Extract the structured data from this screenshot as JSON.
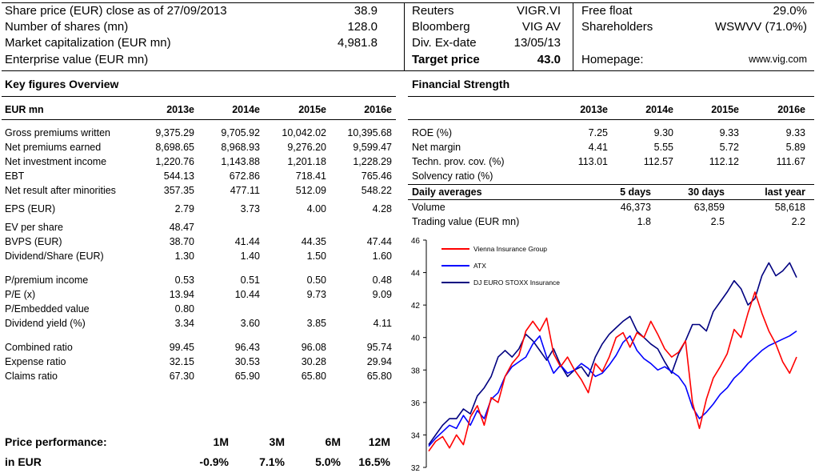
{
  "header": {
    "left": [
      {
        "label": "Share price (EUR) close as of 27/09/2013",
        "value": "38.9"
      },
      {
        "label": "Number of shares (mn)",
        "value": "128.0"
      },
      {
        "label": "Market capitalization (EUR mn)",
        "value": "4,981.8"
      },
      {
        "label": "Enterprise value (EUR mn)",
        "value": ""
      }
    ],
    "mid": [
      {
        "label": "Reuters",
        "value": "VIGR.VI"
      },
      {
        "label": "Bloomberg",
        "value": "VIG AV"
      },
      {
        "label": "Div. Ex-date",
        "value": "13/05/13"
      },
      {
        "label": "Target price",
        "value": "43.0"
      }
    ],
    "right": [
      {
        "label": "Free float",
        "value": "29.0%"
      },
      {
        "label": "Shareholders",
        "value": "WSWVV (71.0%)"
      },
      {
        "label": "",
        "value": ""
      },
      {
        "label": "Homepage:",
        "value": "www.vig.com"
      }
    ]
  },
  "key_figures": {
    "title": "Key figures Overview",
    "unit": "EUR mn",
    "years": [
      "2013e",
      "2014e",
      "2015e",
      "2016e"
    ],
    "rows": [
      {
        "label": "Gross premiums written",
        "values": [
          "9,375.29",
          "9,705.92",
          "10,042.02",
          "10,395.68"
        ]
      },
      {
        "label": "Net premiums earned",
        "values": [
          "8,698.65",
          "8,968.93",
          "9,276.20",
          "9,599.47"
        ]
      },
      {
        "label": "Net investment income",
        "values": [
          "1,220.76",
          "1,143.88",
          "1,201.18",
          "1,228.29"
        ]
      },
      {
        "label": "EBT",
        "values": [
          "544.13",
          "672.86",
          "718.41",
          "765.46"
        ]
      },
      {
        "label": "Net result after minorities",
        "values": [
          "357.35",
          "477.11",
          "512.09",
          "548.22"
        ]
      },
      {
        "label": "EPS (EUR)",
        "values": [
          "2.79",
          "3.73",
          "4.00",
          "4.28"
        ]
      },
      {
        "label": "EV per share",
        "values": [
          "48.47",
          "",
          "",
          ""
        ]
      },
      {
        "label": "BVPS (EUR)",
        "values": [
          "38.70",
          "41.44",
          "44.35",
          "47.44"
        ]
      },
      {
        "label": "Dividend/Share (EUR)",
        "values": [
          "1.30",
          "1.40",
          "1.50",
          "1.60"
        ]
      },
      {
        "label": "P/premium income",
        "values": [
          "0.53",
          "0.51",
          "0.50",
          "0.48"
        ]
      },
      {
        "label": "P/E (x)",
        "values": [
          "13.94",
          "10.44",
          "9.73",
          "9.09"
        ]
      },
      {
        "label": "P/Embedded value",
        "values": [
          "0.80",
          "",
          "",
          ""
        ]
      },
      {
        "label": "Dividend yield (%)",
        "values": [
          "3.34",
          "3.60",
          "3.85",
          "4.11"
        ]
      },
      {
        "label": "Combined ratio",
        "values": [
          "99.45",
          "96.43",
          "96.08",
          "95.74"
        ]
      },
      {
        "label": "Expense ratio",
        "values": [
          "32.15",
          "30.53",
          "30.28",
          "29.94"
        ]
      },
      {
        "label": "Claims ratio",
        "values": [
          "67.30",
          "65.90",
          "65.80",
          "65.80"
        ]
      }
    ]
  },
  "financial_strength": {
    "title": "Financial Strength",
    "years": [
      "2013e",
      "2014e",
      "2015e",
      "2016e"
    ],
    "rows": [
      {
        "label": "ROE (%)",
        "values": [
          "7.25",
          "9.30",
          "9.33",
          "9.33"
        ]
      },
      {
        "label": "Net margin",
        "values": [
          "4.41",
          "5.55",
          "5.72",
          "5.89"
        ]
      },
      {
        "label": "Techn. prov. cov. (%)",
        "values": [
          "113.01",
          "112.57",
          "112.12",
          "111.67"
        ]
      },
      {
        "label": "Solvency ratio (%)",
        "values": [
          "",
          "",
          "",
          ""
        ]
      }
    ]
  },
  "daily_averages": {
    "title": "Daily averages",
    "cols": [
      "5 days",
      "30 days",
      "last year"
    ],
    "rows": [
      {
        "label": "Volume",
        "values": [
          "46,373",
          "63,859",
          "58,618"
        ]
      },
      {
        "label": "Trading value (EUR mn)",
        "values": [
          "1.8",
          "2.5",
          "2.2"
        ]
      }
    ]
  },
  "price_performance": {
    "title": "Price performance:",
    "currency_label": "in EUR",
    "periods": [
      "1M",
      "3M",
      "6M",
      "12M"
    ],
    "values": [
      "-0.9%",
      "7.1%",
      "5.0%",
      "16.5%"
    ]
  },
  "chart_data": {
    "type": "line",
    "ylim": [
      32,
      46
    ],
    "yticks": [
      "32",
      "34",
      "36",
      "38",
      "40",
      "42",
      "44",
      "46"
    ],
    "legend_position": "top-left",
    "colors": {
      "vig": "#ff0000",
      "atx": "#0000ff",
      "stoxx": "#000080"
    },
    "series": [
      {
        "name": "Vienna Insurance Group",
        "values": [
          33.0,
          33.6,
          33.9,
          33.2,
          34.0,
          33.4,
          35.1,
          35.8,
          34.6,
          36.3,
          36.0,
          37.6,
          38.4,
          38.9,
          40.4,
          41.0,
          40.4,
          41.2,
          39.0,
          38.2,
          38.8,
          38.0,
          37.4,
          36.6,
          38.4,
          37.9,
          38.8,
          40.0,
          40.3,
          39.4,
          40.3,
          40.0,
          41.0,
          40.2,
          39.3,
          38.8,
          39.1,
          39.8,
          36.0,
          34.4,
          36.2,
          37.5,
          38.2,
          39.0,
          40.5,
          40.0,
          41.5,
          42.8,
          41.5,
          40.4,
          39.6,
          38.5,
          37.8,
          38.8
        ]
      },
      {
        "name": "ATX",
        "values": [
          33.3,
          33.8,
          34.2,
          34.6,
          34.4,
          35.2,
          34.6,
          35.5,
          35.0,
          36.2,
          36.6,
          37.6,
          38.2,
          38.5,
          38.8,
          39.6,
          40.1,
          38.8,
          37.8,
          38.3,
          37.8,
          38.0,
          38.4,
          38.1,
          37.6,
          37.8,
          38.3,
          38.9,
          39.7,
          40.1,
          39.2,
          38.7,
          38.4,
          38.0,
          38.2,
          37.9,
          37.6,
          37.0,
          35.7,
          35.0,
          35.4,
          35.9,
          36.5,
          36.9,
          37.5,
          37.9,
          38.4,
          38.8,
          39.2,
          39.5,
          39.7,
          39.9,
          40.1,
          40.4
        ]
      },
      {
        "name": "DJ EURO STOXX Insurance",
        "values": [
          33.4,
          34.0,
          34.6,
          35.0,
          35.0,
          35.6,
          35.3,
          36.4,
          36.9,
          37.6,
          38.8,
          39.2,
          38.8,
          39.3,
          40.2,
          39.8,
          39.2,
          38.6,
          39.3,
          38.3,
          37.6,
          38.0,
          38.2,
          37.6,
          38.8,
          39.6,
          40.2,
          40.6,
          41.0,
          41.3,
          40.4,
          40.0,
          39.6,
          39.3,
          38.5,
          37.8,
          39.0,
          39.8,
          40.8,
          40.8,
          40.4,
          41.6,
          42.2,
          42.8,
          43.5,
          43.0,
          42.0,
          42.4,
          43.8,
          44.6,
          43.8,
          44.1,
          44.6,
          43.7
        ]
      }
    ]
  }
}
